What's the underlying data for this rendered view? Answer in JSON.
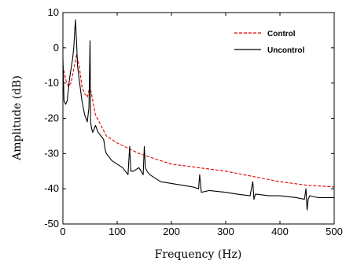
{
  "chart_data": {
    "type": "line",
    "xlabel": "Frequency (Hz)",
    "ylabel": "Amplitude (dB)",
    "xlim": [
      0,
      500
    ],
    "ylim": [
      -50,
      10
    ],
    "xticks": [
      0,
      100,
      200,
      300,
      400,
      500
    ],
    "yticks": [
      10,
      0,
      -10,
      -20,
      -30,
      -40,
      -50
    ],
    "grid": false,
    "legend_position": "top-right",
    "series": [
      {
        "name": "Control",
        "color": "#e00000",
        "style": "dashed",
        "x": [
          0,
          5,
          10,
          15,
          20,
          25,
          30,
          35,
          40,
          45,
          50,
          55,
          60,
          70,
          80,
          90,
          100,
          120,
          140,
          160,
          180,
          200,
          250,
          300,
          350,
          400,
          450,
          500
        ],
        "y": [
          -5,
          -9,
          -11,
          -10,
          -6,
          -2,
          -5,
          -11,
          -13,
          -14,
          -11,
          -15,
          -19,
          -22,
          -25,
          -26,
          -27,
          -28.5,
          -30,
          -31,
          -32,
          -33,
          -34,
          -35,
          -36.5,
          -38,
          -39,
          -39.5
        ]
      },
      {
        "name": "Uncontrol",
        "color": "#000000",
        "style": "solid",
        "x": [
          0,
          2,
          5,
          8,
          10,
          12,
          15,
          18,
          20,
          23,
          25,
          27,
          30,
          35,
          40,
          45,
          48,
          50,
          51,
          53,
          55,
          60,
          65,
          70,
          75,
          78,
          80,
          85,
          90,
          100,
          110,
          120,
          123,
          125,
          130,
          140,
          148,
          150,
          152,
          155,
          160,
          170,
          180,
          200,
          220,
          240,
          250,
          252,
          255,
          270,
          300,
          320,
          345,
          350,
          352,
          355,
          380,
          400,
          430,
          445,
          448,
          450,
          452,
          455,
          470,
          500
        ],
        "y": [
          -3,
          -15,
          -16,
          -15,
          -12,
          -9,
          -6,
          -3,
          0,
          8,
          2,
          -5,
          -9,
          -15,
          -19,
          -21,
          -17,
          2,
          -21,
          -23,
          -24,
          -22,
          -24,
          -25,
          -26,
          -29,
          -30,
          -31,
          -32,
          -33,
          -34,
          -36,
          -28,
          -35,
          -35,
          -34,
          -36,
          -28,
          -34,
          -35,
          -36,
          -37,
          -38,
          -38.5,
          -39,
          -39.5,
          -40,
          -36,
          -41,
          -40.5,
          -41,
          -41.5,
          -42,
          -38,
          -43,
          -41.5,
          -42,
          -42,
          -42.5,
          -43,
          -40,
          -46,
          -43,
          -42,
          -42.5,
          -42.5
        ]
      }
    ]
  }
}
